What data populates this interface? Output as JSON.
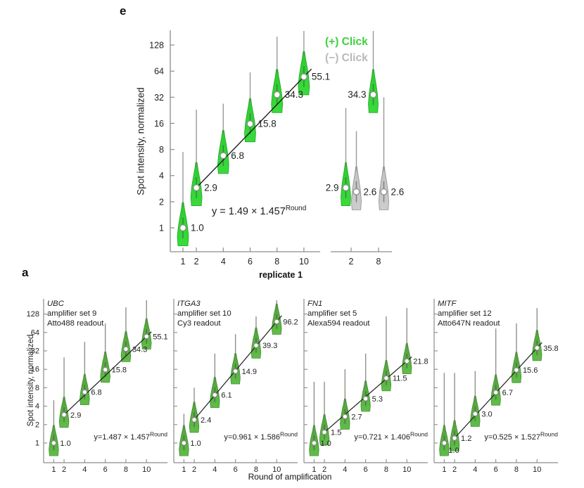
{
  "panels": {
    "e_label": "e",
    "a_label": "a"
  },
  "colors": {
    "plus_fill": "#35D336",
    "plus_fill_bottom": "#5FBC48",
    "minus_fill": "#CACACA",
    "axis": "#8C8C8C",
    "trend_line": "#1E1E1E",
    "tail_line": "#9A9A9A",
    "legend_plus": "#3ED13E",
    "legend_minus": "#B9B9B9"
  },
  "chart_data": [
    {
      "id": "panel_e",
      "type": "violin",
      "scale": "log2",
      "ylabel": "Spot intensity, normalized",
      "xlabel": "replicate 1",
      "yticks": [
        1,
        2,
        4,
        8,
        16,
        32,
        64,
        128
      ],
      "xticks": [
        1,
        2,
        4,
        6,
        8,
        10
      ],
      "control_xticks": [
        2,
        8
      ],
      "legend": [
        {
          "label": "(+) Click",
          "color": "#3ED13E",
          "series": "plus"
        },
        {
          "label": "(−) Click",
          "color": "#B9B9B9",
          "series": "minus"
        }
      ],
      "equation": {
        "base": "y = 1.49 × 1.457",
        "sup": "Round"
      },
      "series_main": {
        "series": "plus",
        "x": [
          1,
          2,
          4,
          6,
          8,
          10
        ],
        "medians": [
          1.0,
          2.9,
          6.8,
          15.8,
          34.3,
          55.1
        ],
        "labels": [
          "1.0",
          "2.9",
          "6.8",
          "15.8",
          "34.3",
          "55.1"
        ],
        "tails": [
          7.5,
          23,
          27,
          62,
          160,
          210
        ],
        "label_sides": [
          "right",
          "right",
          "right",
          "right",
          "right",
          "right"
        ]
      },
      "control_group": [
        {
          "series": "plus",
          "x": 2,
          "median": 2.9,
          "label": "2.9",
          "tail": 24,
          "label_side": "left"
        },
        {
          "series": "minus",
          "x": 2,
          "median": 2.6,
          "label": "2.6",
          "tail": 13,
          "label_side": "right"
        },
        {
          "series": "plus",
          "x": 8,
          "median": 34.3,
          "label": "34.3",
          "tail": 200,
          "label_side": "left"
        },
        {
          "series": "minus",
          "x": 8,
          "median": 2.6,
          "label": "2.6",
          "tail": 32,
          "label_side": "right"
        }
      ],
      "fit_line": {
        "from_x": 2,
        "to_x": 10
      }
    },
    {
      "id": "panel_a",
      "type": "violin",
      "scale": "log2",
      "ylabel": "Spot intensity, normalized",
      "xlabel": "Round of amplification",
      "yticks": [
        1,
        2,
        4,
        8,
        16,
        32,
        64,
        128
      ],
      "xticks": [
        1,
        2,
        4,
        6,
        8,
        10
      ],
      "subplots": [
        {
          "title_lines": [
            "UBC",
            "amplifier set 9",
            "Atto488 readout"
          ],
          "equation": {
            "base": "y=1.487 × 1.457",
            "sup": "Round"
          },
          "x": [
            1,
            2,
            4,
            6,
            8,
            10
          ],
          "medians": [
            1.0,
            2.9,
            6.8,
            15.8,
            34.3,
            55.1
          ],
          "labels": [
            "1.0",
            "2.9",
            "6.8",
            "15.8",
            "34.3",
            "55.1"
          ],
          "tails": [
            5,
            25,
            45,
            90,
            165,
            225
          ],
          "label_sides": [
            "right",
            "right",
            "right",
            "right",
            "right",
            "right"
          ]
        },
        {
          "title_lines": [
            "ITGA3",
            "amplifier set 10",
            "Cy3 readout"
          ],
          "equation": {
            "base": "y=0.961 × 1.586",
            "sup": "Round"
          },
          "x": [
            1,
            2,
            4,
            6,
            8,
            10
          ],
          "medians": [
            1.0,
            2.4,
            6.1,
            14.9,
            39.3,
            96.2
          ],
          "labels": [
            "1.0",
            "2.4",
            "6.1",
            "14.9",
            "39.3",
            "96.2"
          ],
          "tails": [
            3,
            8,
            29,
            60,
            117,
            220
          ],
          "label_sides": [
            "right",
            "right",
            "right",
            "right",
            "right",
            "right"
          ]
        },
        {
          "title_lines": [
            "FN1",
            "amplifier set 5",
            "Alexa594 readout"
          ],
          "equation": {
            "base": "y=0.721 × 1.406",
            "sup": "Round"
          },
          "x": [
            1,
            2,
            4,
            6,
            8,
            10
          ],
          "medians": [
            1.0,
            1.5,
            2.7,
            5.3,
            11.5,
            21.8
          ],
          "labels": [
            "1.0",
            "1.5",
            "2.7",
            "5.3",
            "11.5",
            "21.8"
          ],
          "tails": [
            10,
            10,
            16,
            29,
            117,
            160
          ],
          "label_sides": [
            "right",
            "right",
            "right",
            "right",
            "right",
            "right"
          ]
        },
        {
          "title_lines": [
            "MITF",
            "amplifier set 12",
            "Atto647N readout"
          ],
          "equation": {
            "base": "y=0.525 × 1.527",
            "sup": "Round"
          },
          "x": [
            1,
            2,
            4,
            6,
            8,
            10
          ],
          "medians": [
            1.0,
            1.2,
            3.0,
            6.7,
            15.6,
            35.8
          ],
          "labels": [
            "1.0",
            "1.2",
            "3.0",
            "6.7",
            "15.6",
            "35.8"
          ],
          "tails": [
            14,
            14,
            15,
            74,
            90,
            160
          ],
          "label_sides": [
            "below",
            "right",
            "right",
            "right",
            "right",
            "right"
          ]
        }
      ]
    }
  ]
}
